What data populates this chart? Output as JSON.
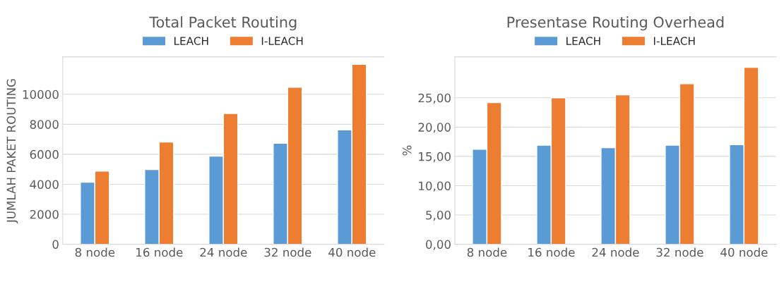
{
  "chart_data": [
    {
      "type": "bar",
      "title": "Total Packet Routing",
      "ylabel": "JUMLAH PAKET ROUTING",
      "categories": [
        "8 node",
        "16 node",
        "24 node",
        "32 node",
        "40 node"
      ],
      "series": [
        {
          "name": "LEACH",
          "color": "#5b9bd5",
          "values": [
            4140,
            4980,
            5880,
            6730,
            7630
          ]
        },
        {
          "name": "I-LEACH",
          "color": "#ed7d31",
          "values": [
            4880,
            6820,
            8720,
            10470,
            12000
          ]
        }
      ],
      "ylim": [
        0,
        12500
      ],
      "yticks": [
        0,
        2000,
        4000,
        6000,
        8000,
        10000
      ],
      "grid": "y",
      "legend": "top"
    },
    {
      "type": "bar",
      "title": "Presentase Routing Overhead",
      "ylabel": "%",
      "categories": [
        "8 node",
        "16 node",
        "24 node",
        "32 node",
        "40 node"
      ],
      "series": [
        {
          "name": "LEACH",
          "color": "#5b9bd5",
          "values": [
            16.2,
            16.9,
            16.5,
            16.9,
            17.0
          ]
        },
        {
          "name": "I-LEACH",
          "color": "#ed7d31",
          "values": [
            24.2,
            25.0,
            25.5,
            27.4,
            30.2
          ]
        }
      ],
      "ylim": [
        0,
        32
      ],
      "yticks": [
        {
          "value": 0,
          "label": "0,00"
        },
        {
          "value": 5,
          "label": "5,00"
        },
        {
          "value": 10,
          "label": "10,00"
        },
        {
          "value": 15,
          "label": "15,00"
        },
        {
          "value": 20,
          "label": "20,00"
        },
        {
          "value": 25,
          "label": "25,00"
        }
      ],
      "grid": "y",
      "legend": "top"
    }
  ]
}
